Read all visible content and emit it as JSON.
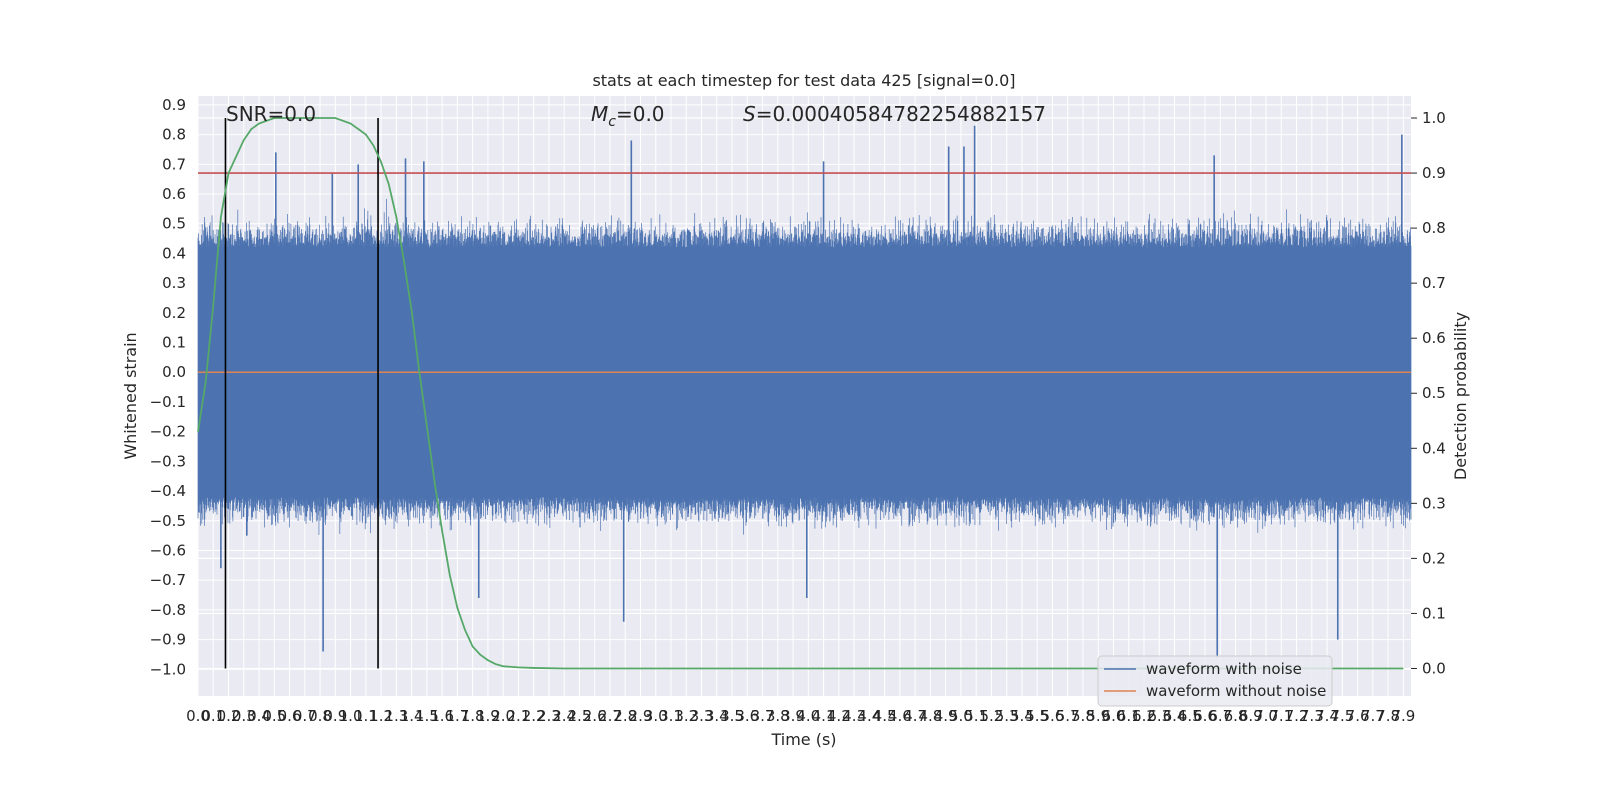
{
  "chart_data": {
    "type": "line",
    "title": "stats at each timestep for test data 425 [signal=0.0]",
    "xlabel": "Time (s)",
    "ylabel": "Whitened strain",
    "y2label": "Detection probability",
    "xlim": [
      0.0,
      7.95
    ],
    "ylim": [
      -1.09,
      0.93
    ],
    "y2lim": [
      -0.05,
      1.04
    ],
    "grid": true,
    "legend_position": "lower right",
    "x_ticks": [
      "0.0",
      "0.1",
      "0.2",
      "0.3",
      "0.4",
      "0.5",
      "0.6",
      "0.7",
      "0.8",
      "0.9",
      "1.0",
      "1.1",
      "1.2",
      "1.3",
      "1.4",
      "1.5",
      "1.6",
      "1.7",
      "1.8",
      "1.9",
      "2.0",
      "2.1",
      "2.2",
      "2.3",
      "2.4",
      "2.5",
      "2.6",
      "2.7",
      "2.8",
      "2.9",
      "3.0",
      "3.1",
      "3.2",
      "3.3",
      "3.4",
      "3.5",
      "3.6",
      "3.7",
      "3.8",
      "3.9",
      "4.0",
      "4.1",
      "4.2",
      "4.3",
      "4.4",
      "4.5",
      "4.6",
      "4.7",
      "4.8",
      "4.9",
      "5.0",
      "5.1",
      "5.2",
      "5.3",
      "5.4",
      "5.5",
      "5.6",
      "5.7",
      "5.8",
      "5.9",
      "6.0",
      "6.1",
      "6.2",
      "6.3",
      "6.4",
      "6.5",
      "6.6",
      "6.7",
      "6.8",
      "6.9",
      "7.0",
      "7.1",
      "7.2",
      "7.3",
      "7.4",
      "7.5",
      "7.6",
      "7.7",
      "7.8",
      "7.9"
    ],
    "y_ticks": [
      "0.9",
      "0.8",
      "0.7",
      "0.6",
      "0.5",
      "0.4",
      "0.3",
      "0.2",
      "0.1",
      "0.0",
      "−0.1",
      "−0.2",
      "−0.3",
      "−0.4",
      "−0.5",
      "−0.6",
      "−0.7",
      "−0.8",
      "−0.9",
      "−1.0"
    ],
    "y_tick_values": [
      0.9,
      0.8,
      0.7,
      0.6,
      0.5,
      0.4,
      0.3,
      0.2,
      0.1,
      0.0,
      -0.1,
      -0.2,
      -0.3,
      -0.4,
      -0.5,
      -0.6,
      -0.7,
      -0.8,
      -0.9,
      -1.0
    ],
    "y2_ticks": [
      "1.0",
      "0.9",
      "0.8",
      "0.7",
      "0.6",
      "0.5",
      "0.4",
      "0.3",
      "0.2",
      "0.1",
      "0.0"
    ],
    "y2_tick_values": [
      1.0,
      0.9,
      0.8,
      0.7,
      0.6,
      0.5,
      0.4,
      0.3,
      0.2,
      0.1,
      0.0
    ],
    "series": [
      {
        "name": "waveform with noise",
        "color": "#4c72b0",
        "description_values": "dense noise, peaks approx",
        "peaks": [
          {
            "x": 0.15,
            "y": -0.66
          },
          {
            "x": 0.32,
            "y": -0.55
          },
          {
            "x": 0.51,
            "y": 0.74
          },
          {
            "x": 0.82,
            "y": -0.94
          },
          {
            "x": 0.88,
            "y": 0.67
          },
          {
            "x": 1.05,
            "y": 0.7
          },
          {
            "x": 1.36,
            "y": 0.72
          },
          {
            "x": 1.48,
            "y": 0.71
          },
          {
            "x": 1.84,
            "y": -0.76
          },
          {
            "x": 2.84,
            "y": 0.78
          },
          {
            "x": 2.79,
            "y": -0.84
          },
          {
            "x": 3.99,
            "y": -0.76
          },
          {
            "x": 4.1,
            "y": 0.71
          },
          {
            "x": 4.92,
            "y": 0.76
          },
          {
            "x": 5.02,
            "y": 0.76
          },
          {
            "x": 5.09,
            "y": 0.83
          },
          {
            "x": 6.66,
            "y": 0.73
          },
          {
            "x": 6.68,
            "y": -0.96
          },
          {
            "x": 7.47,
            "y": -0.9
          },
          {
            "x": 7.89,
            "y": 0.8
          }
        ]
      },
      {
        "name": "waveform without noise",
        "color": "#dd8452",
        "x": [
          0.0,
          7.95
        ],
        "y": [
          0.0,
          0.0
        ]
      },
      {
        "name": "",
        "color": "#55a868",
        "axis": "right",
        "x": [
          0.0,
          0.05,
          0.1,
          0.15,
          0.2,
          0.25,
          0.3,
          0.35,
          0.4,
          0.5,
          0.6,
          0.7,
          0.8,
          0.9,
          1.0,
          1.05,
          1.1,
          1.15,
          1.2,
          1.25,
          1.3,
          1.35,
          1.4,
          1.45,
          1.5,
          1.55,
          1.6,
          1.65,
          1.7,
          1.75,
          1.8,
          1.85,
          1.9,
          1.95,
          2.0,
          2.1,
          2.2,
          2.4,
          2.6,
          3.0,
          4.0,
          5.0,
          6.0,
          7.0,
          7.9
        ],
        "y": [
          0.43,
          0.52,
          0.66,
          0.82,
          0.9,
          0.93,
          0.96,
          0.98,
          0.99,
          1.0,
          1.0,
          1.0,
          1.0,
          1.0,
          0.99,
          0.98,
          0.97,
          0.95,
          0.92,
          0.88,
          0.82,
          0.74,
          0.65,
          0.54,
          0.44,
          0.34,
          0.25,
          0.17,
          0.11,
          0.07,
          0.04,
          0.025,
          0.015,
          0.008,
          0.004,
          0.002,
          0.001,
          0.0,
          0.0,
          0.0,
          0.0,
          0.0,
          0.0,
          0.0,
          0.0
        ]
      }
    ],
    "hlines": [
      {
        "axis": "right",
        "y": 0.9,
        "color": "#c44e52"
      }
    ],
    "vlines": [
      {
        "x": 0.18,
        "color": "#000000"
      },
      {
        "x": 1.18,
        "color": "#000000"
      }
    ],
    "annotations": {
      "snr": "SNR=0.0",
      "mc_symbol": "M",
      "mc_sub": "c",
      "mc_value": "=0.0",
      "s_symbol": "S",
      "s_value": "=0.00040584782254882157"
    },
    "legend": [
      {
        "label": "waveform with noise",
        "color": "#4c72b0"
      },
      {
        "label": "waveform without noise",
        "color": "#dd8452"
      }
    ]
  }
}
